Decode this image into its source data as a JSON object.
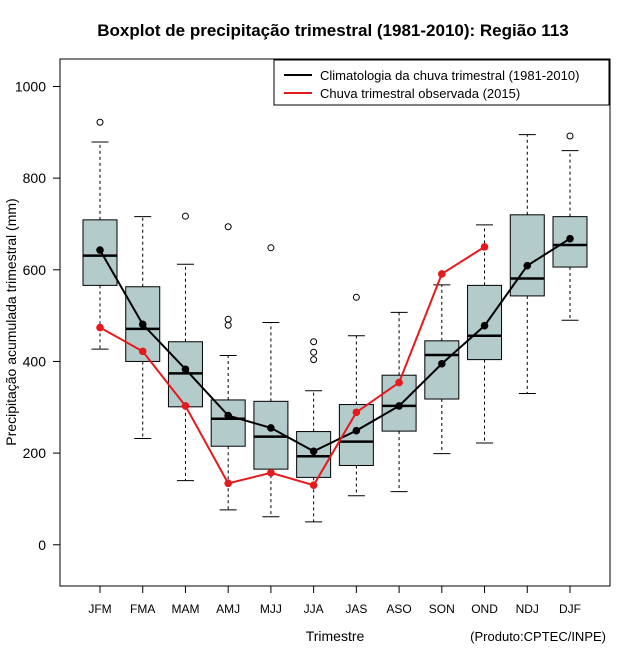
{
  "chart_data": {
    "type": "boxplot",
    "title": "Boxplot de precipitação trimestral (1981-2010): Região 113",
    "xlabel": "Trimestre",
    "ylabel": "Precipitação acumulada trimestral (mm)",
    "credit": "(Produto:CPTEC/INPE)",
    "ylim": [
      -90,
      1060
    ],
    "yticks": [
      0,
      200,
      400,
      600,
      800,
      1000
    ],
    "categories": [
      "JFM",
      "FMA",
      "MAM",
      "AMJ",
      "MJJ",
      "JJA",
      "JAS",
      "ASO",
      "SON",
      "OND",
      "NDJ",
      "DJF"
    ],
    "boxes": [
      {
        "whisker_low": 427,
        "q1": 566,
        "median": 631,
        "q3": 709,
        "whisker_high": 879,
        "outliers": [
          922
        ]
      },
      {
        "whisker_low": 232,
        "q1": 400,
        "median": 471,
        "q3": 563,
        "whisker_high": 716,
        "outliers": []
      },
      {
        "whisker_low": 140,
        "q1": 301,
        "median": 374,
        "q3": 443,
        "whisker_high": 612,
        "outliers": [
          717
        ]
      },
      {
        "whisker_low": 76,
        "q1": 215,
        "median": 275,
        "q3": 316,
        "whisker_high": 413,
        "outliers": [
          479,
          492,
          694
        ]
      },
      {
        "whisker_low": 61,
        "q1": 165,
        "median": 236,
        "q3": 313,
        "whisker_high": 485,
        "outliers": [
          648
        ]
      },
      {
        "whisker_low": 50,
        "q1": 147,
        "median": 193,
        "q3": 247,
        "whisker_high": 336,
        "outliers": [
          404,
          420,
          443
        ]
      },
      {
        "whisker_low": 107,
        "q1": 173,
        "median": 225,
        "q3": 306,
        "whisker_high": 456,
        "outliers": [
          540
        ]
      },
      {
        "whisker_low": 116,
        "q1": 248,
        "median": 303,
        "q3": 370,
        "whisker_high": 507,
        "outliers": []
      },
      {
        "whisker_low": 199,
        "q1": 318,
        "median": 414,
        "q3": 445,
        "whisker_high": 567,
        "outliers": []
      },
      {
        "whisker_low": 222,
        "q1": 404,
        "median": 456,
        "q3": 566,
        "whisker_high": 698,
        "outliers": []
      },
      {
        "whisker_low": 330,
        "q1": 543,
        "median": 581,
        "q3": 720,
        "whisker_high": 895,
        "outliers": []
      },
      {
        "whisker_low": 490,
        "q1": 606,
        "median": 654,
        "q3": 716,
        "whisker_high": 860,
        "outliers": [
          892
        ]
      }
    ],
    "series": [
      {
        "name": "Climatologia da chuva trimestral (1981-2010)",
        "color": "#000000",
        "values": [
          643,
          481,
          383,
          282,
          255,
          204,
          249,
          303,
          395,
          478,
          609,
          668
        ]
      },
      {
        "name": "Chuva trimestral observada (2015)",
        "color": "#e41a1c",
        "values": [
          474,
          422,
          303,
          134,
          157,
          130,
          289,
          354,
          591,
          650
        ]
      }
    ],
    "box_fill": "#b4cbcb",
    "legend_position": "top-right"
  }
}
